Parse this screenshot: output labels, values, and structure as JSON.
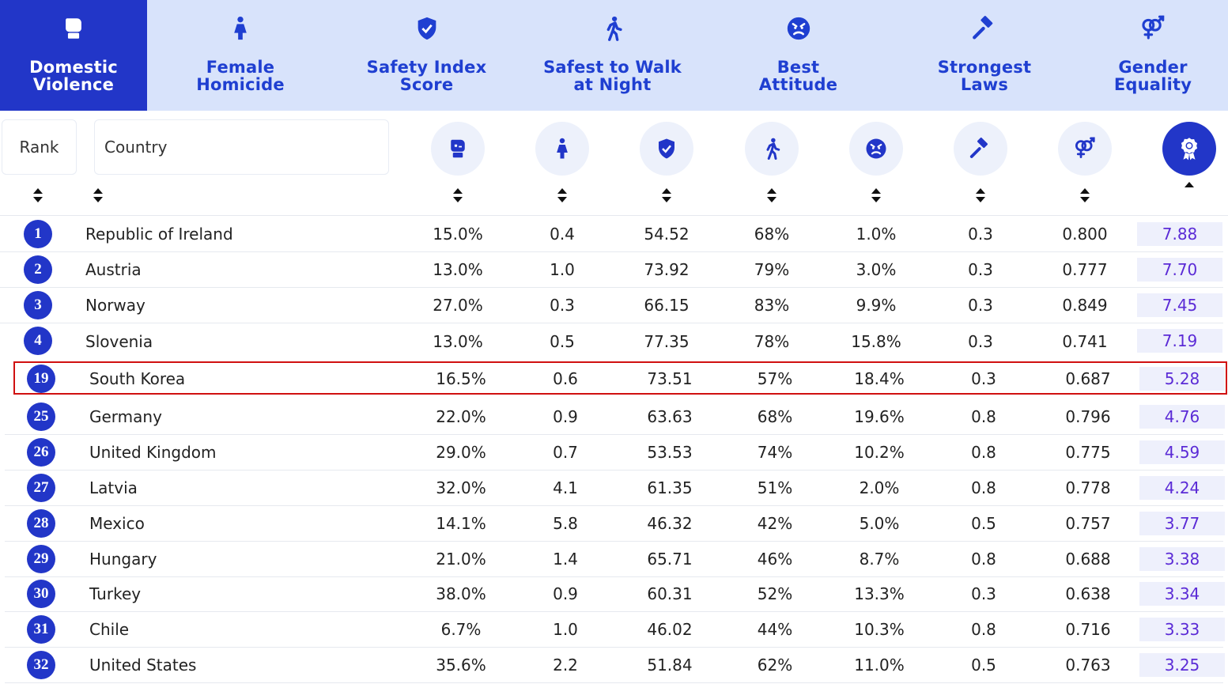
{
  "tabs": [
    {
      "label": "Domestic\nViolence",
      "icon": "boxing-glove-icon",
      "active": true
    },
    {
      "label": "Female\nHomicide",
      "icon": "female-person-icon",
      "active": false
    },
    {
      "label": "Safety Index\nScore",
      "icon": "shield-check-icon",
      "active": false
    },
    {
      "label": "Safest to Walk\nat Night",
      "icon": "walking-person-icon",
      "active": false
    },
    {
      "label": "Best\nAttitude",
      "icon": "angry-face-icon",
      "active": false
    },
    {
      "label": "Strongest\nLaws",
      "icon": "gavel-icon",
      "active": false
    },
    {
      "label": "Gender\nEquality",
      "icon": "gender-symbol-icon",
      "active": false
    }
  ],
  "header": {
    "rank_label": "Rank",
    "country_label": "Country",
    "column_icons": [
      "boxing-glove-icon",
      "female-person-icon",
      "shield-check-icon",
      "walking-person-icon",
      "angry-face-icon",
      "gavel-icon",
      "gender-symbol-icon",
      "award-ribbon-icon"
    ],
    "sorted_column": "award-ribbon-icon",
    "sort_direction": "ascending-arrow"
  },
  "colors": {
    "accent": "#2236c8",
    "tab_bg": "#d8e3fb",
    "score_text": "#5b2bd6",
    "highlight": "#d01010"
  },
  "rows": [
    {
      "rank": "1",
      "country": "Republic of Ireland",
      "dv": "15.0%",
      "fh": "0.4",
      "si": "54.52",
      "walk": "68%",
      "att": "1.0%",
      "laws": "0.3",
      "ge": "0.800",
      "score": "7.88"
    },
    {
      "rank": "2",
      "country": "Austria",
      "dv": "13.0%",
      "fh": "1.0",
      "si": "73.92",
      "walk": "79%",
      "att": "3.0%",
      "laws": "0.3",
      "ge": "0.777",
      "score": "7.70"
    },
    {
      "rank": "3",
      "country": "Norway",
      "dv": "27.0%",
      "fh": "0.3",
      "si": "66.15",
      "walk": "83%",
      "att": "9.9%",
      "laws": "0.3",
      "ge": "0.849",
      "score": "7.45"
    },
    {
      "rank": "4",
      "country": "Slovenia",
      "dv": "13.0%",
      "fh": "0.5",
      "si": "77.35",
      "walk": "78%",
      "att": "15.8%",
      "laws": "0.3",
      "ge": "0.741",
      "score": "7.19"
    },
    {
      "rank": "19",
      "country": "South Korea",
      "dv": "16.5%",
      "fh": "0.6",
      "si": "73.51",
      "walk": "57%",
      "att": "18.4%",
      "laws": "0.3",
      "ge": "0.687",
      "score": "5.28",
      "highlighted": true
    },
    {
      "rank": "25",
      "country": "Germany",
      "dv": "22.0%",
      "fh": "0.9",
      "si": "63.63",
      "walk": "68%",
      "att": "19.6%",
      "laws": "0.8",
      "ge": "0.796",
      "score": "4.76"
    },
    {
      "rank": "26",
      "country": "United Kingdom",
      "dv": "29.0%",
      "fh": "0.7",
      "si": "53.53",
      "walk": "74%",
      "att": "10.2%",
      "laws": "0.8",
      "ge": "0.775",
      "score": "4.59"
    },
    {
      "rank": "27",
      "country": "Latvia",
      "dv": "32.0%",
      "fh": "4.1",
      "si": "61.35",
      "walk": "51%",
      "att": "2.0%",
      "laws": "0.8",
      "ge": "0.778",
      "score": "4.24"
    },
    {
      "rank": "28",
      "country": "Mexico",
      "dv": "14.1%",
      "fh": "5.8",
      "si": "46.32",
      "walk": "42%",
      "att": "5.0%",
      "laws": "0.5",
      "ge": "0.757",
      "score": "3.77"
    },
    {
      "rank": "29",
      "country": "Hungary",
      "dv": "21.0%",
      "fh": "1.4",
      "si": "65.71",
      "walk": "46%",
      "att": "8.7%",
      "laws": "0.8",
      "ge": "0.688",
      "score": "3.38"
    },
    {
      "rank": "30",
      "country": "Turkey",
      "dv": "38.0%",
      "fh": "0.9",
      "si": "60.31",
      "walk": "52%",
      "att": "13.3%",
      "laws": "0.3",
      "ge": "0.638",
      "score": "3.34"
    },
    {
      "rank": "31",
      "country": "Chile",
      "dv": "6.7%",
      "fh": "1.0",
      "si": "46.02",
      "walk": "44%",
      "att": "10.3%",
      "laws": "0.8",
      "ge": "0.716",
      "score": "3.33"
    },
    {
      "rank": "32",
      "country": "United States",
      "dv": "35.6%",
      "fh": "2.2",
      "si": "51.84",
      "walk": "62%",
      "att": "11.0%",
      "laws": "0.5",
      "ge": "0.763",
      "score": "3.25"
    }
  ]
}
